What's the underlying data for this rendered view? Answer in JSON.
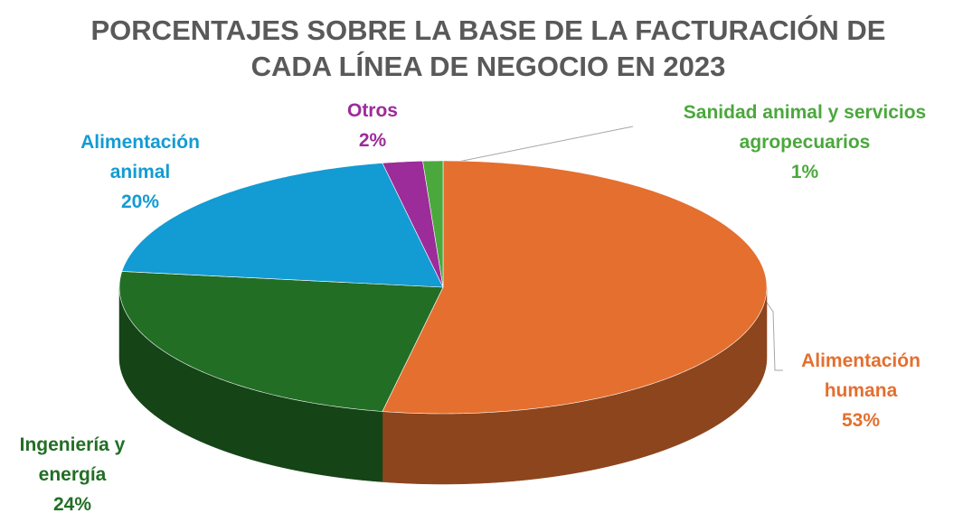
{
  "chart_data": {
    "type": "pie3d",
    "title": "PORCENTAJES SOBRE LA BASE DE LA FACTURACIÓN DE CADA LÍNEA DE NEGOCIO EN 2023",
    "categories": [
      "Alimentación humana",
      "Ingeniería y energía",
      "Alimentación animal",
      "Otros",
      "Sanidad animal y servicios agropecuarios"
    ],
    "values": [
      53,
      24,
      20,
      2,
      1
    ],
    "value_labels": [
      "53%",
      "24%",
      "20%",
      "2%",
      "1%"
    ],
    "colors": [
      "#e46f2f",
      "#226e25",
      "#139bd3",
      "#9b2c99",
      "#4ba83d"
    ]
  }
}
